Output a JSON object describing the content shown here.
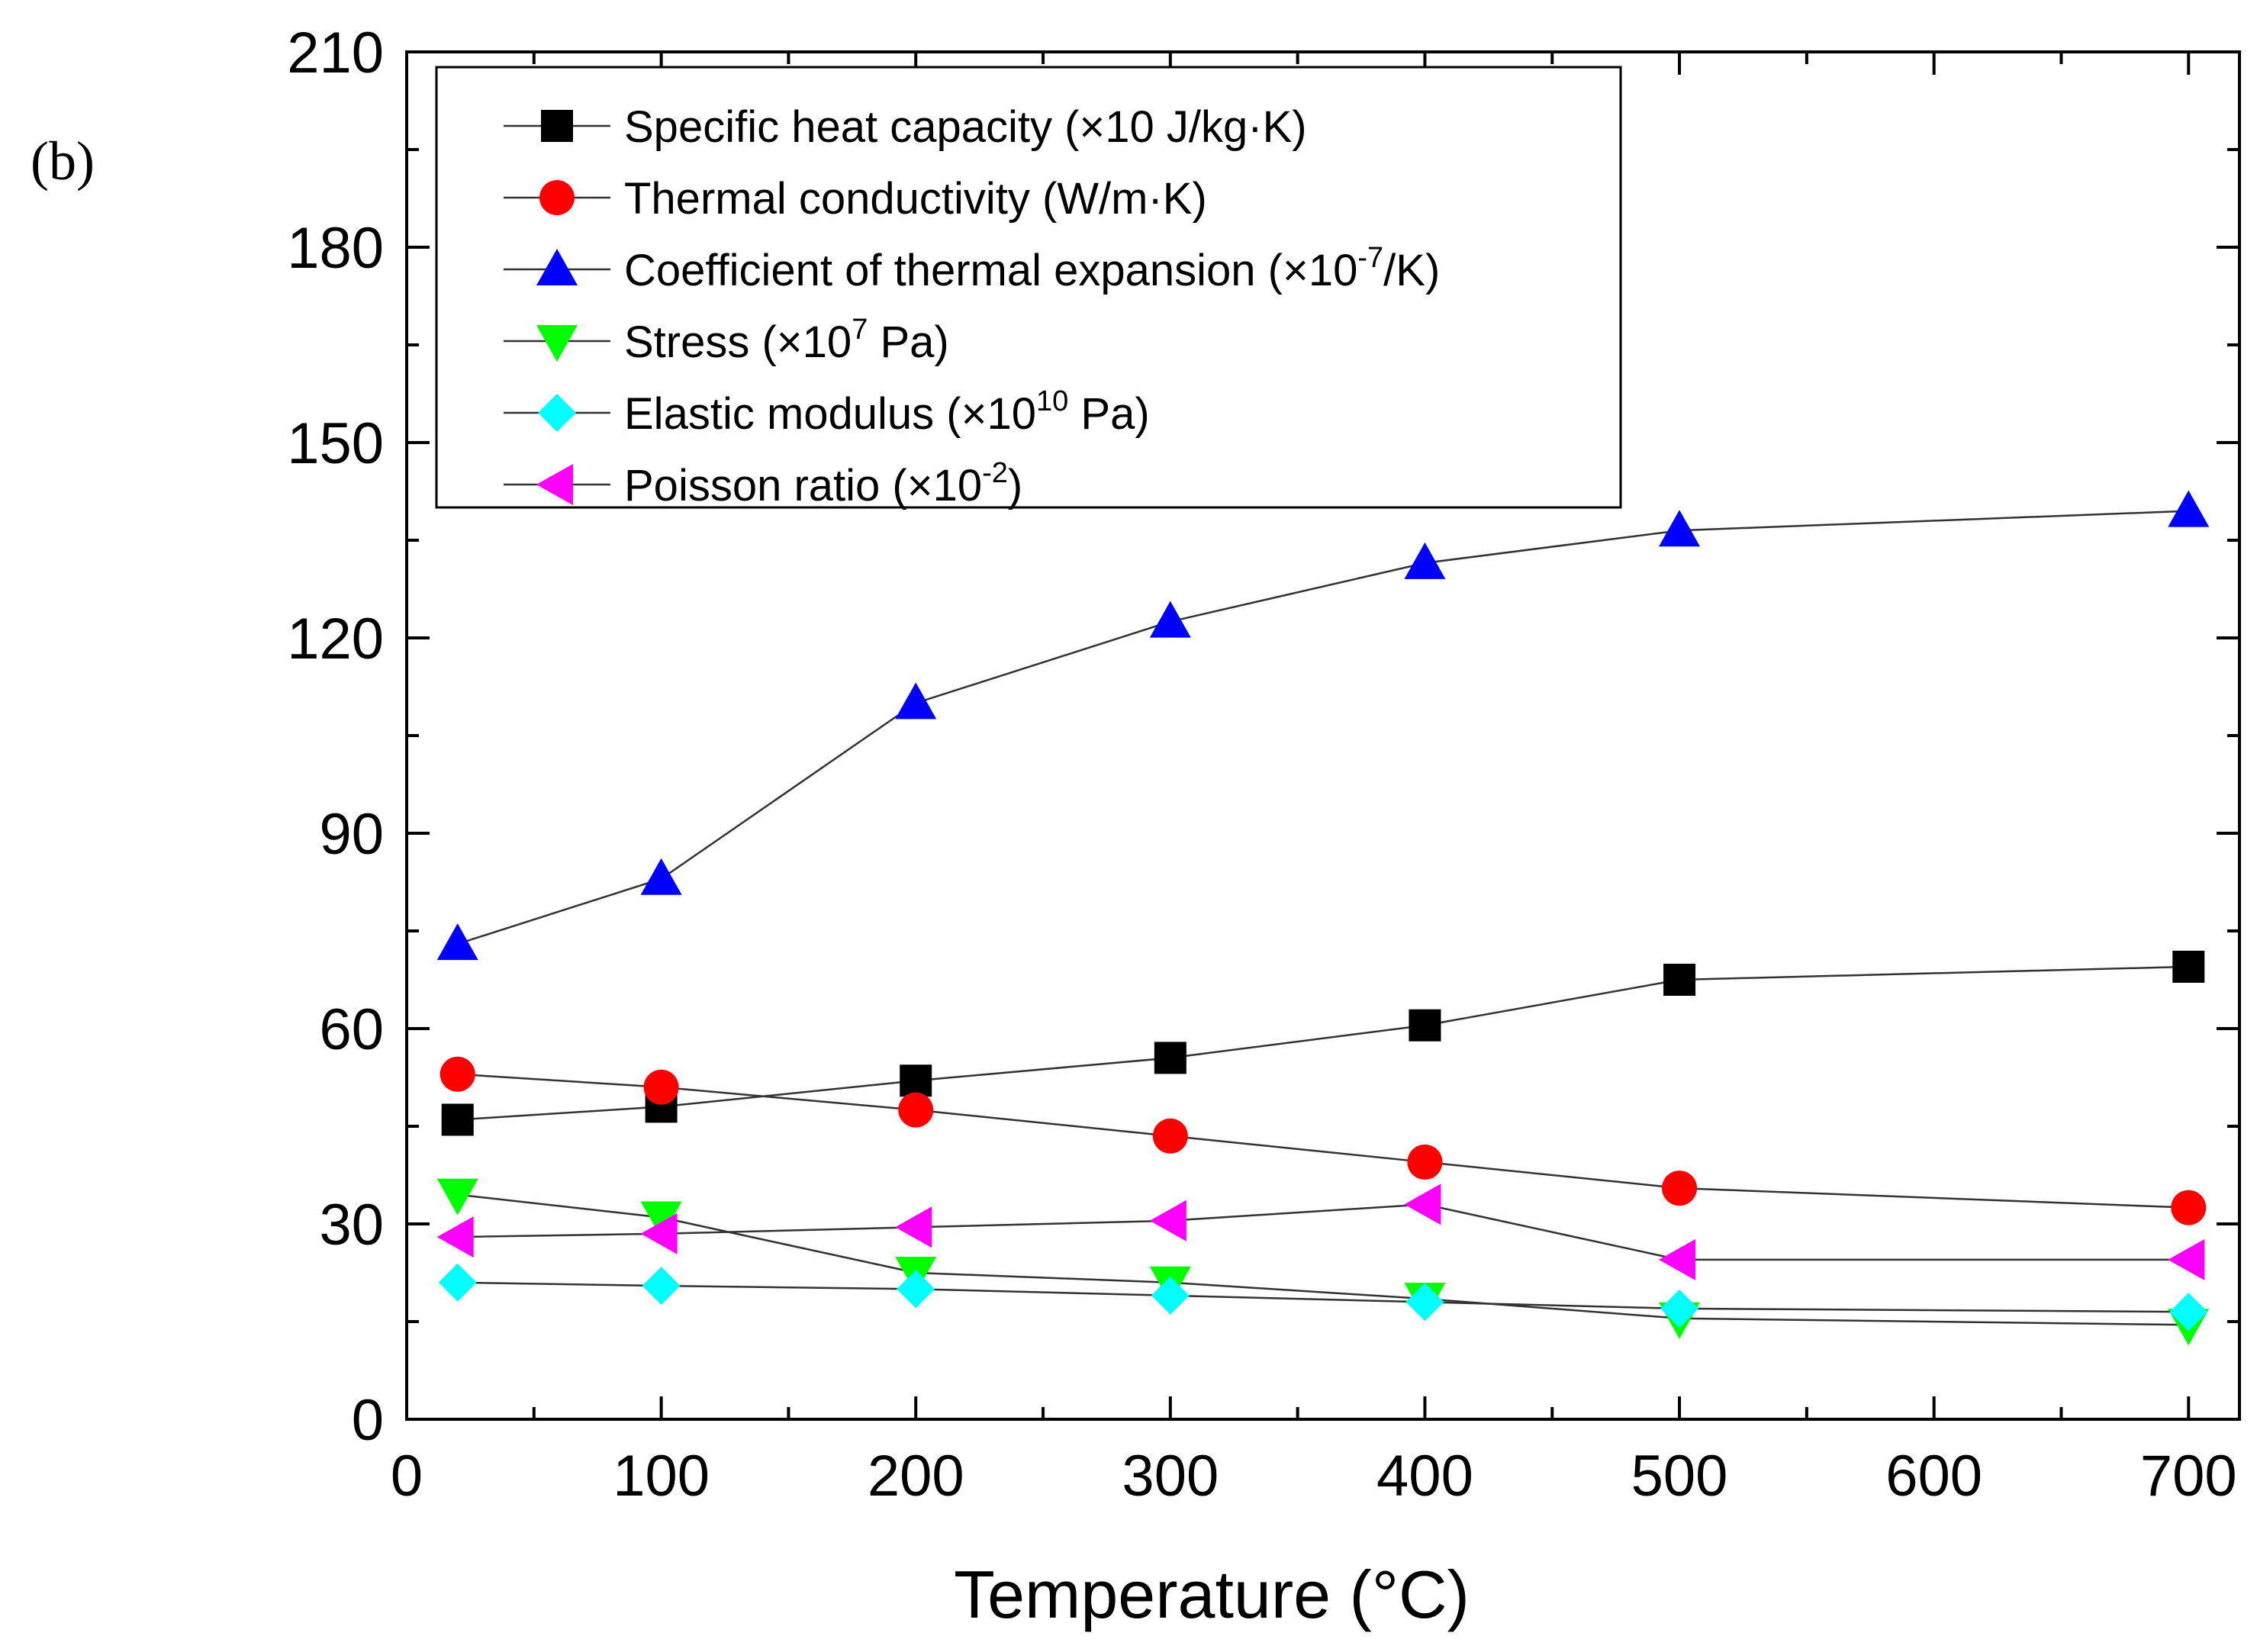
{
  "panel_label": "(b)",
  "chart_data": {
    "type": "line",
    "xlabel": "Temperature (°C)",
    "ylabel": "",
    "xlim": [
      0,
      720
    ],
    "ylim": [
      0,
      210
    ],
    "x_ticks": [
      0,
      100,
      200,
      300,
      400,
      500,
      600,
      700
    ],
    "y_ticks": [
      0,
      30,
      60,
      90,
      120,
      150,
      180,
      210
    ],
    "legend_position": "top-left",
    "grid": false,
    "x": [
      20,
      100,
      200,
      300,
      400,
      500,
      700
    ],
    "series": [
      {
        "name": "Specific heat capacity (×10 J/kg·K)",
        "label_parts": [
          {
            "t": "Specific heat capacity (×10 J/kg·K)"
          }
        ],
        "marker": "square",
        "color": "#000000",
        "values": [
          46,
          48,
          52,
          55.5,
          60.5,
          67.5,
          69.5
        ]
      },
      {
        "name": "Thermal conductivity (W/m·K)",
        "label_parts": [
          {
            "t": "Thermal conductivity (W/m·K)"
          }
        ],
        "marker": "circle",
        "color": "#ff0000",
        "values": [
          53,
          51,
          47.5,
          43.5,
          39.5,
          35.5,
          32.5
        ]
      },
      {
        "name": "Coefficient of thermal expansion (×10-7/K)",
        "label_parts": [
          {
            "t": "Coefficient of thermal expansion (×10"
          },
          {
            "sup": "-7"
          },
          {
            "t": "/K)"
          }
        ],
        "marker": "triangle-up",
        "color": "#0000ff",
        "values": [
          73,
          83,
          110,
          122.5,
          131.5,
          136.5,
          139.5
        ]
      },
      {
        "name": "Stress (×107 Pa)",
        "label_parts": [
          {
            "t": "Stress (×10"
          },
          {
            "sup": "7"
          },
          {
            "t": " Pa)"
          }
        ],
        "marker": "triangle-down",
        "color": "#00ff00",
        "values": [
          34.5,
          31,
          22.5,
          21,
          18.5,
          15.5,
          14.5
        ]
      },
      {
        "name": "Elastic modulus (×1010 Pa)",
        "label_parts": [
          {
            "t": "Elastic modulus (×10"
          },
          {
            "sup": "10"
          },
          {
            "t": " Pa)"
          }
        ],
        "marker": "diamond",
        "color": "#00ffff",
        "values": [
          21,
          20.5,
          20,
          19,
          18,
          17,
          16.5
        ]
      },
      {
        "name": "Poisson ratio (×10-2)",
        "label_parts": [
          {
            "t": "Poisson ratio (×10"
          },
          {
            "sup": "-2"
          },
          {
            "t": ")"
          }
        ],
        "marker": "triangle-left",
        "color": "#ff00ff",
        "values": [
          28,
          28.5,
          29.5,
          30.5,
          33,
          24.5,
          24.5
        ]
      }
    ]
  }
}
